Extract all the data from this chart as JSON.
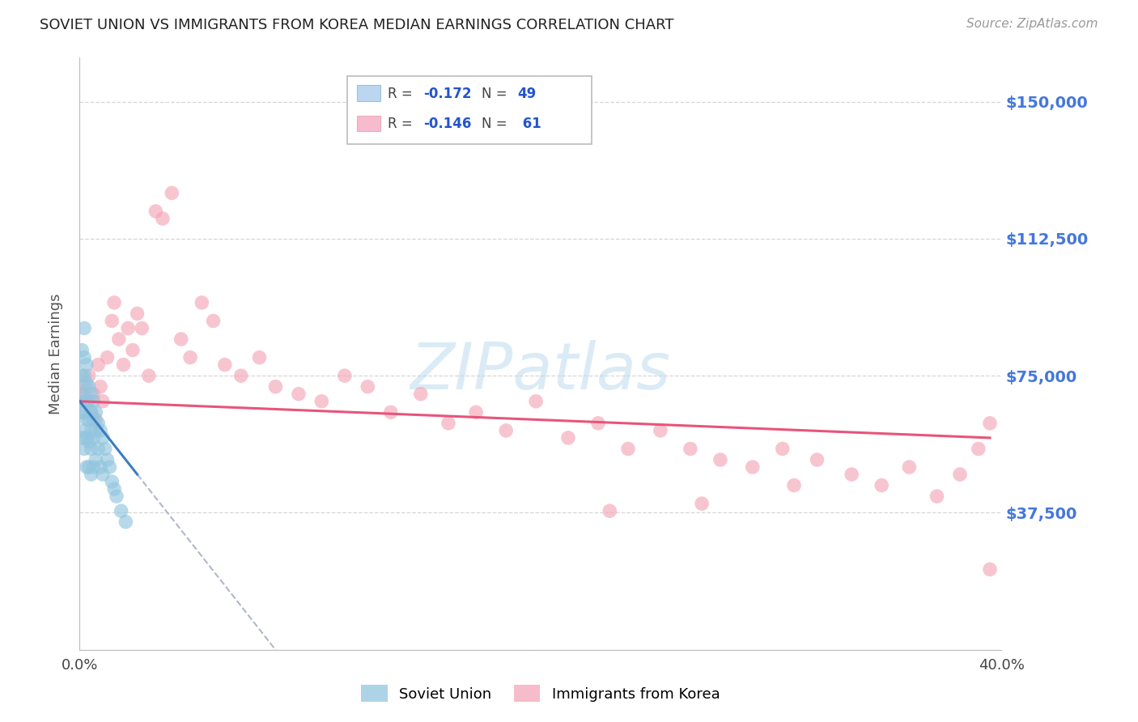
{
  "title": "SOVIET UNION VS IMMIGRANTS FROM KOREA MEDIAN EARNINGS CORRELATION CHART",
  "source": "Source: ZipAtlas.com",
  "ylabel": "Median Earnings",
  "xlim": [
    0.0,
    0.4
  ],
  "ylim": [
    0,
    162000
  ],
  "yticks": [
    0,
    37500,
    75000,
    112500,
    150000
  ],
  "ytick_labels": [
    "",
    "$37,500",
    "$75,000",
    "$112,500",
    "$150,000"
  ],
  "xticks": [
    0.0,
    0.05,
    0.1,
    0.15,
    0.2,
    0.25,
    0.3,
    0.35,
    0.4
  ],
  "color_blue": "#92c5de",
  "color_pink": "#f4a6b8",
  "color_trend_blue": "#3a7ebf",
  "color_trend_pink": "#e8547a",
  "color_trend_dashed": "#b0b8c8",
  "color_ytick": "#4477dd",
  "watermark": "ZIPatlas",
  "soviet_x": [
    0.001,
    0.001,
    0.001,
    0.001,
    0.001,
    0.002,
    0.002,
    0.002,
    0.002,
    0.002,
    0.002,
    0.002,
    0.003,
    0.003,
    0.003,
    0.003,
    0.003,
    0.003,
    0.004,
    0.004,
    0.004,
    0.004,
    0.004,
    0.005,
    0.005,
    0.005,
    0.005,
    0.005,
    0.006,
    0.006,
    0.006,
    0.006,
    0.007,
    0.007,
    0.007,
    0.008,
    0.008,
    0.009,
    0.009,
    0.01,
    0.01,
    0.011,
    0.012,
    0.013,
    0.014,
    0.015,
    0.016,
    0.018,
    0.02
  ],
  "soviet_y": [
    82000,
    75000,
    70000,
    65000,
    58000,
    88000,
    80000,
    75000,
    68000,
    65000,
    60000,
    55000,
    78000,
    73000,
    68000,
    63000,
    58000,
    50000,
    72000,
    68000,
    63000,
    57000,
    50000,
    70000,
    65000,
    60000,
    55000,
    48000,
    68000,
    63000,
    58000,
    50000,
    65000,
    60000,
    52000,
    62000,
    55000,
    60000,
    50000,
    58000,
    48000,
    55000,
    52000,
    50000,
    46000,
    44000,
    42000,
    38000,
    35000
  ],
  "korea_x": [
    0.001,
    0.002,
    0.003,
    0.004,
    0.005,
    0.006,
    0.007,
    0.008,
    0.009,
    0.01,
    0.012,
    0.014,
    0.015,
    0.017,
    0.019,
    0.021,
    0.023,
    0.025,
    0.027,
    0.03,
    0.033,
    0.036,
    0.04,
    0.044,
    0.048,
    0.053,
    0.058,
    0.063,
    0.07,
    0.078,
    0.085,
    0.095,
    0.105,
    0.115,
    0.125,
    0.135,
    0.148,
    0.16,
    0.172,
    0.185,
    0.198,
    0.212,
    0.225,
    0.238,
    0.252,
    0.265,
    0.278,
    0.292,
    0.305,
    0.32,
    0.335,
    0.348,
    0.36,
    0.372,
    0.382,
    0.39,
    0.395,
    0.31,
    0.27,
    0.23,
    0.395
  ],
  "korea_y": [
    70000,
    72000,
    68000,
    75000,
    65000,
    70000,
    63000,
    78000,
    72000,
    68000,
    80000,
    90000,
    95000,
    85000,
    78000,
    88000,
    82000,
    92000,
    88000,
    75000,
    120000,
    118000,
    125000,
    85000,
    80000,
    95000,
    90000,
    78000,
    75000,
    80000,
    72000,
    70000,
    68000,
    75000,
    72000,
    65000,
    70000,
    62000,
    65000,
    60000,
    68000,
    58000,
    62000,
    55000,
    60000,
    55000,
    52000,
    50000,
    55000,
    52000,
    48000,
    45000,
    50000,
    42000,
    48000,
    55000,
    62000,
    45000,
    40000,
    38000,
    22000
  ]
}
